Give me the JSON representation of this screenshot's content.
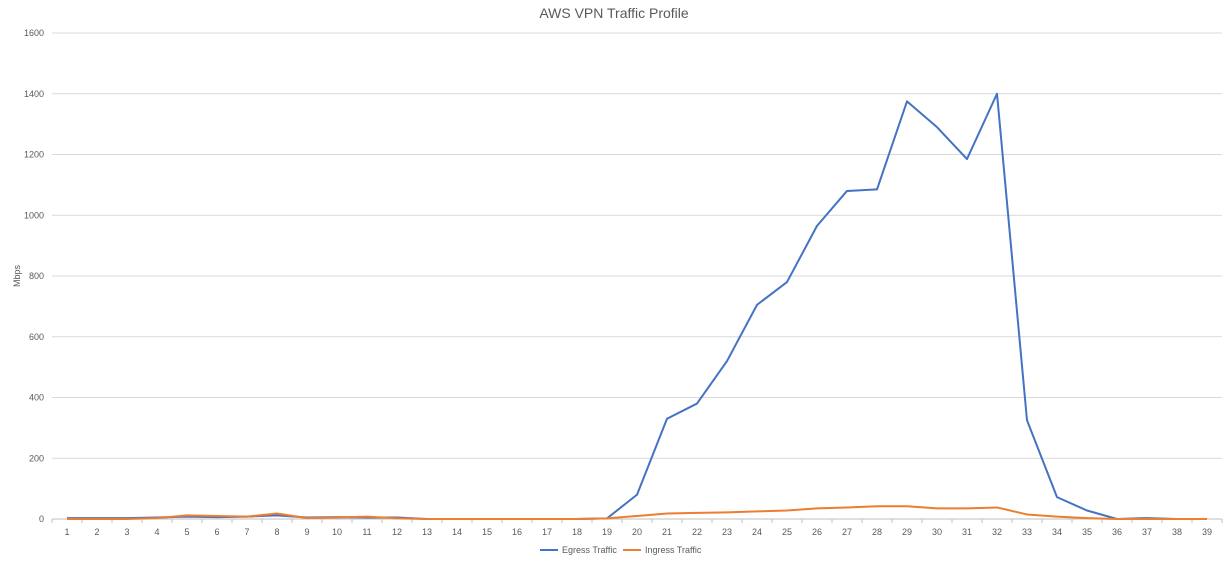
{
  "chart_data": {
    "type": "line",
    "title": "AWS VPN Traffic Profile",
    "xlabel": "",
    "ylabel": "Mbps",
    "ylim": [
      0,
      1600
    ],
    "yticks": [
      0,
      200,
      400,
      600,
      800,
      1000,
      1200,
      1400,
      1600
    ],
    "grid": true,
    "legend_position": "bottom",
    "categories": [
      "1",
      "2",
      "3",
      "4",
      "5",
      "6",
      "7",
      "8",
      "9",
      "10",
      "11",
      "12",
      "13",
      "14",
      "15",
      "16",
      "17",
      "18",
      "19",
      "20",
      "21",
      "22",
      "23",
      "24",
      "25",
      "26",
      "27",
      "28",
      "29",
      "30",
      "31",
      "32",
      "33",
      "34",
      "35",
      "36",
      "37",
      "38",
      "39"
    ],
    "series": [
      {
        "name": "Egress Traffic",
        "color": "#4472c4",
        "values": [
          3,
          3,
          3,
          5,
          8,
          6,
          8,
          12,
          5,
          6,
          5,
          5,
          0,
          0,
          0,
          0,
          0,
          0,
          2,
          80,
          330,
          380,
          520,
          705,
          780,
          965,
          1080,
          1085,
          1375,
          1290,
          1185,
          1400,
          325,
          72,
          28,
          0,
          3,
          0,
          0
        ]
      },
      {
        "name": "Ingress Traffic",
        "color": "#ed7d31",
        "values": [
          0,
          0,
          0,
          3,
          12,
          10,
          8,
          18,
          3,
          5,
          8,
          2,
          0,
          0,
          0,
          0,
          0,
          0,
          2,
          10,
          18,
          20,
          22,
          25,
          28,
          35,
          38,
          42,
          42,
          35,
          35,
          38,
          15,
          8,
          3,
          0,
          0,
          0,
          0
        ]
      }
    ]
  }
}
